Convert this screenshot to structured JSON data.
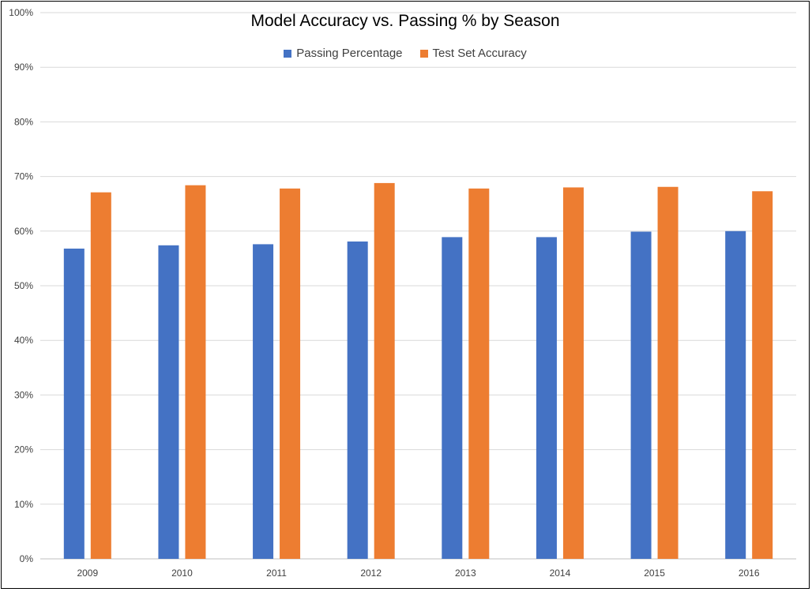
{
  "chart_data": {
    "type": "bar",
    "title": "Model Accuracy vs. Passing % by Season",
    "categories": [
      "2009",
      "2010",
      "2011",
      "2012",
      "2013",
      "2014",
      "2015",
      "2016"
    ],
    "series": [
      {
        "name": "Passing Percentage",
        "color": "#4472c4",
        "values": [
          0.568,
          0.574,
          0.576,
          0.581,
          0.589,
          0.589,
          0.599,
          0.6
        ]
      },
      {
        "name": "Test Set Accuracy",
        "color": "#ed7d31",
        "values": [
          0.671,
          0.684,
          0.678,
          0.688,
          0.678,
          0.68,
          0.681,
          0.673
        ]
      }
    ],
    "ylim": [
      0,
      1
    ],
    "yticks": [
      "0%",
      "10%",
      "20%",
      "30%",
      "40%",
      "50%",
      "60%",
      "70%",
      "80%",
      "90%",
      "100%"
    ],
    "grid": true,
    "legend_position": "top"
  }
}
